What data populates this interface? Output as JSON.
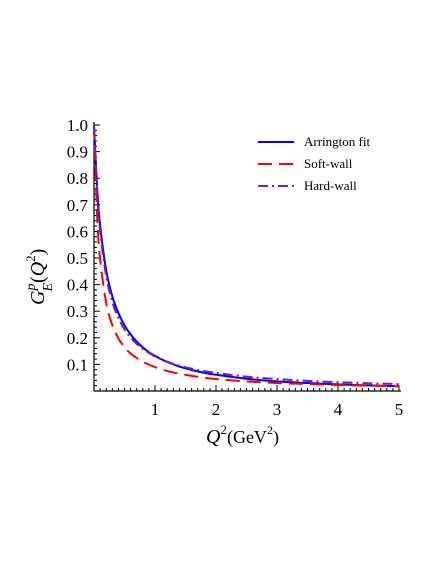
{
  "chart_data": {
    "type": "line",
    "xlabel": {
      "base": "Q",
      "sup": "2",
      "unit_open": "(GeV",
      "unit_sup": "2",
      "unit_close": ")"
    },
    "ylabel": {
      "base": "G",
      "sup": "p",
      "sub": "E",
      "arg_open": "(",
      "arg_base": "Q",
      "arg_sup": "2",
      "arg_close": ")"
    },
    "xlim": [
      0,
      5
    ],
    "ylim": [
      0,
      1.0
    ],
    "x_ticks": [
      1,
      2,
      3,
      4,
      5
    ],
    "x_tick_labels": [
      "1",
      "2",
      "3",
      "4",
      "5"
    ],
    "y_ticks": [
      0.1,
      0.2,
      0.3,
      0.4,
      0.5,
      0.6,
      0.7,
      0.8,
      0.9,
      1.0
    ],
    "y_tick_labels": [
      "0.1",
      "0.2",
      "0.3",
      "0.4",
      "0.5",
      "0.6",
      "0.7",
      "0.8",
      "0.9",
      "1.0"
    ],
    "grid": false,
    "legend_position": "top-right",
    "x": [
      0,
      0.05,
      0.1,
      0.2,
      0.3,
      0.4,
      0.5,
      0.6,
      0.7,
      0.8,
      0.9,
      1.0,
      1.2,
      1.4,
      1.6,
      1.8,
      2.0,
      2.5,
      3.0,
      3.5,
      4.0,
      4.5,
      5.0
    ],
    "series": [
      {
        "name": "Arrington fit",
        "color": "#0000ff",
        "style": "solid",
        "values": [
          1.0,
          0.769,
          0.624,
          0.454,
          0.356,
          0.293,
          0.247,
          0.213,
          0.186,
          0.164,
          0.146,
          0.132,
          0.109,
          0.092,
          0.079,
          0.069,
          0.061,
          0.046,
          0.036,
          0.03,
          0.025,
          0.021,
          0.018
        ]
      },
      {
        "name": "Soft-wall",
        "color": "#ff0000",
        "style": "dashed",
        "values": [
          1.0,
          0.665,
          0.497,
          0.331,
          0.248,
          0.198,
          0.165,
          0.141,
          0.124,
          0.11,
          0.099,
          0.09,
          0.075,
          0.065,
          0.057,
          0.05,
          0.045,
          0.036,
          0.03,
          0.026,
          0.022,
          0.02,
          0.018
        ]
      },
      {
        "name": "Hard-wall",
        "color": "#7a1fa2",
        "style": "dashdot",
        "values": [
          1.0,
          0.752,
          0.602,
          0.431,
          0.335,
          0.274,
          0.232,
          0.201,
          0.177,
          0.158,
          0.143,
          0.13,
          0.11,
          0.095,
          0.084,
          0.075,
          0.068,
          0.054,
          0.045,
          0.038,
          0.033,
          0.029,
          0.026
        ]
      }
    ]
  }
}
